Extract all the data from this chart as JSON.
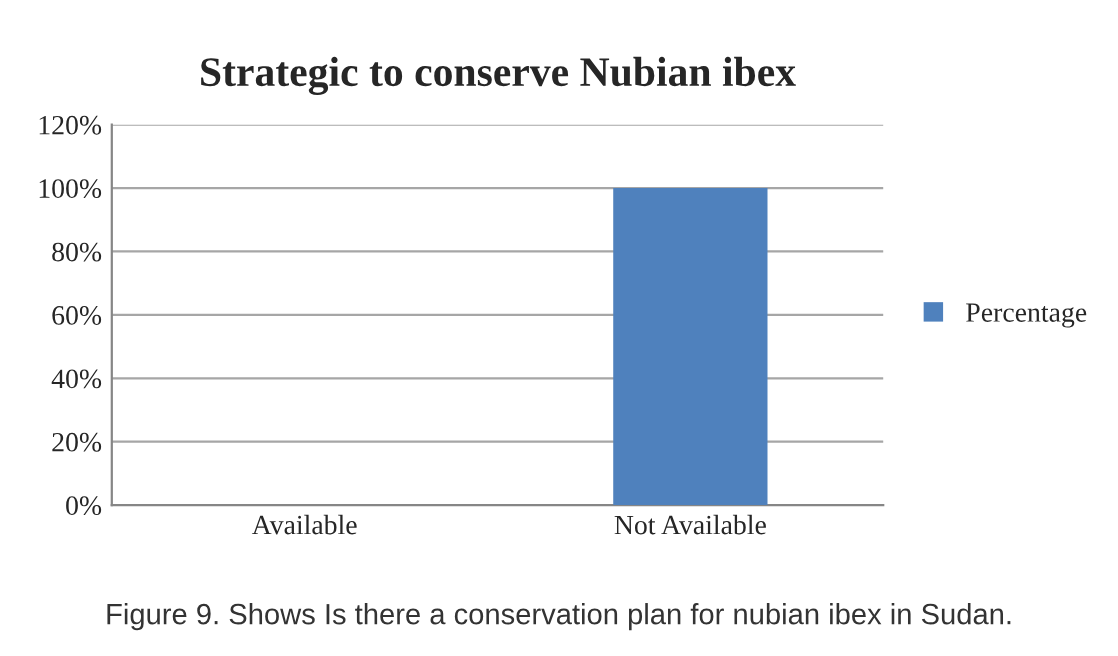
{
  "chart_data": {
    "type": "bar",
    "title": "Strategic to conserve Nubian ibex",
    "categories": [
      "Available",
      "Not Available"
    ],
    "series": [
      {
        "name": "Percentage",
        "color": "#4f81bd",
        "values": [
          0,
          100
        ]
      }
    ],
    "ylim": [
      0,
      120
    ],
    "yticks": [
      {
        "value": 0,
        "label": "0%"
      },
      {
        "value": 20,
        "label": "20%"
      },
      {
        "value": 40,
        "label": "40%"
      },
      {
        "value": 60,
        "label": "60%"
      },
      {
        "value": 80,
        "label": "80%"
      },
      {
        "value": 100,
        "label": "100%"
      },
      {
        "value": 120,
        "label": "120%"
      }
    ],
    "grid": "y",
    "legend": "right",
    "annotations": [
      "Figure 9. Shows Is there a conservation plan for nubian ibex in Sudan."
    ]
  }
}
